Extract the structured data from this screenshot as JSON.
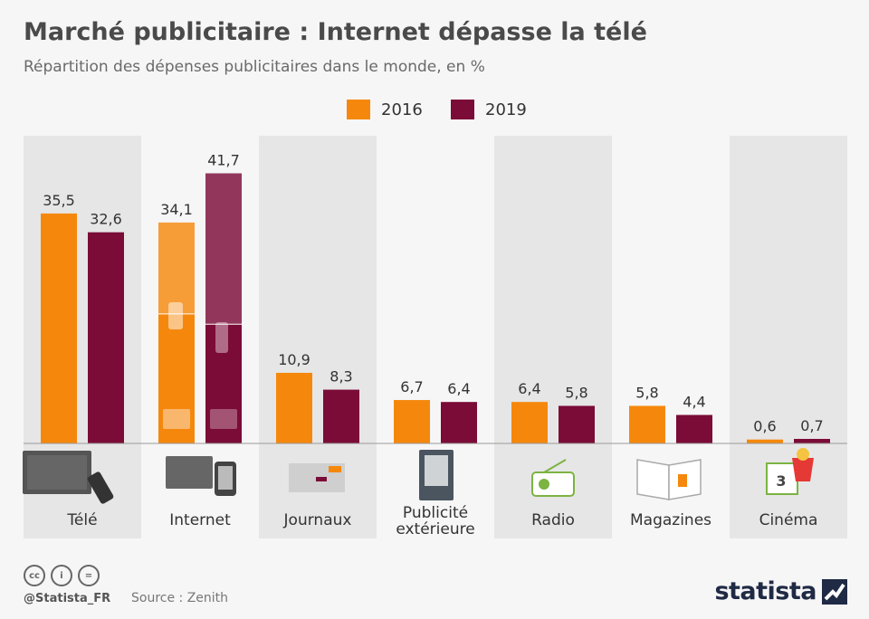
{
  "title": "Marché publicitaire : Internet dépasse la télé",
  "subtitle": "Répartition des dépenses publicitaires dans le monde, en %",
  "legend": [
    {
      "label": "2016",
      "color": "#f5880c"
    },
    {
      "label": "2019",
      "color": "#7b0b37"
    }
  ],
  "chart_data": {
    "type": "bar",
    "categories": [
      "Télé",
      "Internet",
      "Journaux",
      "Publicité extérieure",
      "Radio",
      "Magazines",
      "Cinéma"
    ],
    "category_icons": [
      "tv-icon",
      "computer-smartphone-icon",
      "newspaper-icon",
      "billboard-icon",
      "radio-icon",
      "magazine-icon",
      "cinema-icon"
    ],
    "series": [
      {
        "name": "2016",
        "color": "#f5880c",
        "values": [
          35.5,
          34.1,
          10.9,
          6.7,
          6.4,
          5.8,
          0.6
        ],
        "labels": [
          "35,5",
          "34,1",
          "10,9",
          "6,7",
          "6,4",
          "5,8",
          "0,6"
        ]
      },
      {
        "name": "2019",
        "color": "#7b0b37",
        "values": [
          32.6,
          41.7,
          8.3,
          6.4,
          5.8,
          4.4,
          0.7
        ],
        "labels": [
          "32,6",
          "41,7",
          "8,3",
          "6,4",
          "5,8",
          "4,4",
          "0,7"
        ]
      }
    ],
    "xlabel": "",
    "ylabel": "",
    "ylim": [
      0,
      47.5
    ],
    "grid": false,
    "legend_position": "top-center"
  },
  "footer": {
    "handle": "@Statista_FR",
    "source": "Source : Zenith",
    "brand": "statista"
  }
}
